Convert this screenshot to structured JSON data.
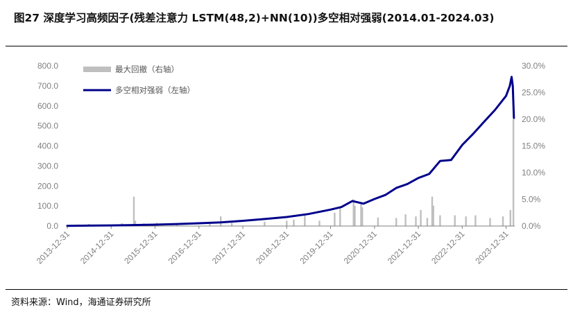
{
  "title": "图27 深度学习高频因子(残差注意力 LSTM(48,2)+NN(10))多空相对强弱(2014.01-2024.03)",
  "source": "资料来源：Wind，海通证券研究所",
  "colors": {
    "line": "#00008B",
    "bars": "#BFBFBF",
    "axis": "#7F7F7F"
  },
  "chart_data": {
    "type": "line",
    "legend": [
      "最大回撤（右轴）",
      "多空相对强弱（左轴）"
    ],
    "legend_position": "top-left",
    "grid": false,
    "left_axis": {
      "min": 0,
      "max": 800,
      "ticks": [
        "0.0",
        "100.0",
        "200.0",
        "300.0",
        "400.0",
        "500.0",
        "600.0",
        "700.0",
        "800.0"
      ]
    },
    "right_axis": {
      "min": 0,
      "max": 30,
      "ticks": [
        "0.0%",
        "5.0%",
        "10.0%",
        "15.0%",
        "20.0%",
        "25.0%",
        "30.0%"
      ]
    },
    "x_ticks": [
      "2013-12-31",
      "2014-12-31",
      "2015-12-31",
      "2016-12-31",
      "2017-12-31",
      "2018-12-31",
      "2019-12-31",
      "2020-12-31",
      "2021-12-31",
      "2022-12-31",
      "2023-12-31"
    ],
    "series": [
      {
        "name": "多空相对强弱（左轴）",
        "axis": "left",
        "style": "line",
        "points": [
          [
            "2013-12-31",
            1
          ],
          [
            "2014-06-30",
            2
          ],
          [
            "2014-12-31",
            3
          ],
          [
            "2015-06-30",
            5
          ],
          [
            "2015-12-31",
            7
          ],
          [
            "2016-06-30",
            10
          ],
          [
            "2016-12-31",
            14
          ],
          [
            "2017-06-30",
            18
          ],
          [
            "2017-12-31",
            26
          ],
          [
            "2018-06-30",
            35
          ],
          [
            "2018-12-31",
            45
          ],
          [
            "2019-06-30",
            60
          ],
          [
            "2019-12-31",
            82
          ],
          [
            "2020-03-31",
            95
          ],
          [
            "2020-06-30",
            125
          ],
          [
            "2020-09-30",
            112
          ],
          [
            "2020-12-31",
            135
          ],
          [
            "2021-03-31",
            155
          ],
          [
            "2021-06-30",
            190
          ],
          [
            "2021-09-30",
            210
          ],
          [
            "2021-12-31",
            240
          ],
          [
            "2022-03-31",
            260
          ],
          [
            "2022-06-30",
            325
          ],
          [
            "2022-09-30",
            330
          ],
          [
            "2022-12-31",
            405
          ],
          [
            "2023-03-31",
            460
          ],
          [
            "2023-06-30",
            520
          ],
          [
            "2023-09-30",
            580
          ],
          [
            "2023-12-31",
            650
          ],
          [
            "2024-01-31",
            700
          ],
          [
            "2024-02-15",
            745
          ],
          [
            "2024-02-25",
            700
          ],
          [
            "2024-03-05",
            540
          ]
        ]
      },
      {
        "name": "最大回撤（右轴）",
        "axis": "right",
        "style": "bar",
        "points": [
          [
            "2014-03-31",
            0.3
          ],
          [
            "2014-06-30",
            0.4
          ],
          [
            "2014-10-31",
            0.3
          ],
          [
            "2015-03-31",
            0.5
          ],
          [
            "2015-07-08",
            5.5
          ],
          [
            "2015-07-20",
            1.0
          ],
          [
            "2015-09-30",
            0.5
          ],
          [
            "2016-01-15",
            0.6
          ],
          [
            "2016-06-30",
            0.4
          ],
          [
            "2017-03-31",
            0.8
          ],
          [
            "2017-06-30",
            1.8
          ],
          [
            "2017-09-30",
            0.6
          ],
          [
            "2018-06-30",
            0.8
          ],
          [
            "2018-12-31",
            1.0
          ],
          [
            "2019-02-28",
            1.2
          ],
          [
            "2019-05-31",
            2.0
          ],
          [
            "2019-09-30",
            1.0
          ],
          [
            "2020-02-03",
            2.5
          ],
          [
            "2020-03-20",
            3.5
          ],
          [
            "2020-07-10",
            5.0
          ],
          [
            "2020-07-20",
            3.8
          ],
          [
            "2020-09-10",
            4.2
          ],
          [
            "2020-09-20",
            3.5
          ],
          [
            "2021-01-29",
            1.6
          ],
          [
            "2021-06-30",
            1.5
          ],
          [
            "2021-09-15",
            2.2
          ],
          [
            "2021-12-10",
            1.8
          ],
          [
            "2022-01-20",
            3.0
          ],
          [
            "2022-03-15",
            1.5
          ],
          [
            "2022-04-25",
            5.5
          ],
          [
            "2022-05-05",
            3.8
          ],
          [
            "2022-06-30",
            2.0
          ],
          [
            "2022-10-31",
            2.0
          ],
          [
            "2023-01-31",
            1.8
          ],
          [
            "2023-04-20",
            2.0
          ],
          [
            "2023-08-20",
            1.5
          ],
          [
            "2023-12-05",
            1.8
          ],
          [
            "2024-02-05",
            3.0
          ],
          [
            "2024-03-01",
            20.0
          ]
        ]
      }
    ]
  }
}
